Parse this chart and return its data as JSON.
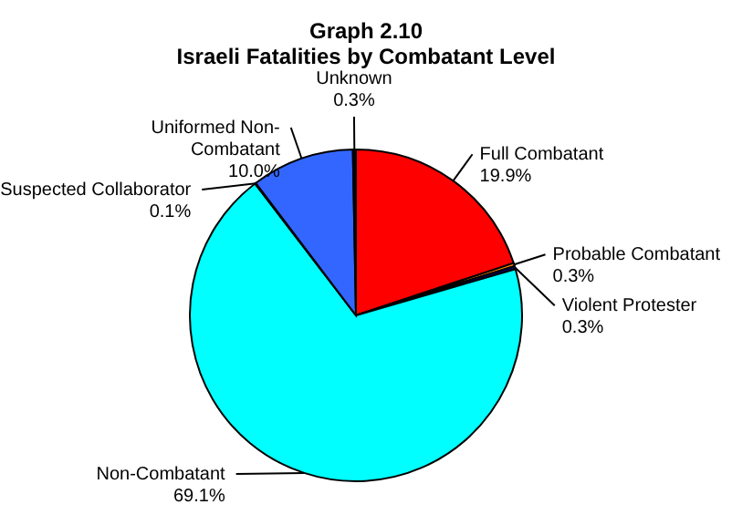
{
  "chart_data": {
    "type": "pie",
    "title": "Graph 2.10\nIsraeli Fatalities by Combatant Level",
    "categories": [
      "Full Combatant",
      "Probable Combatant",
      "Violent Protester",
      "Non-Combatant",
      "Suspected Collaborator",
      "Uniformed Non-Combatant",
      "Unknown"
    ],
    "values": [
      19.9,
      0.3,
      0.3,
      69.1,
      0.1,
      10.0,
      0.3
    ],
    "value_labels": [
      "19.9%",
      "0.3%",
      "0.3%",
      "69.1%",
      "0.1%",
      "10.0%",
      "0.3%"
    ],
    "colors": [
      "#ff0000",
      "#ff8000",
      "#000080",
      "#00ffff",
      "#008000",
      "#3366ff",
      "#000000"
    ]
  }
}
